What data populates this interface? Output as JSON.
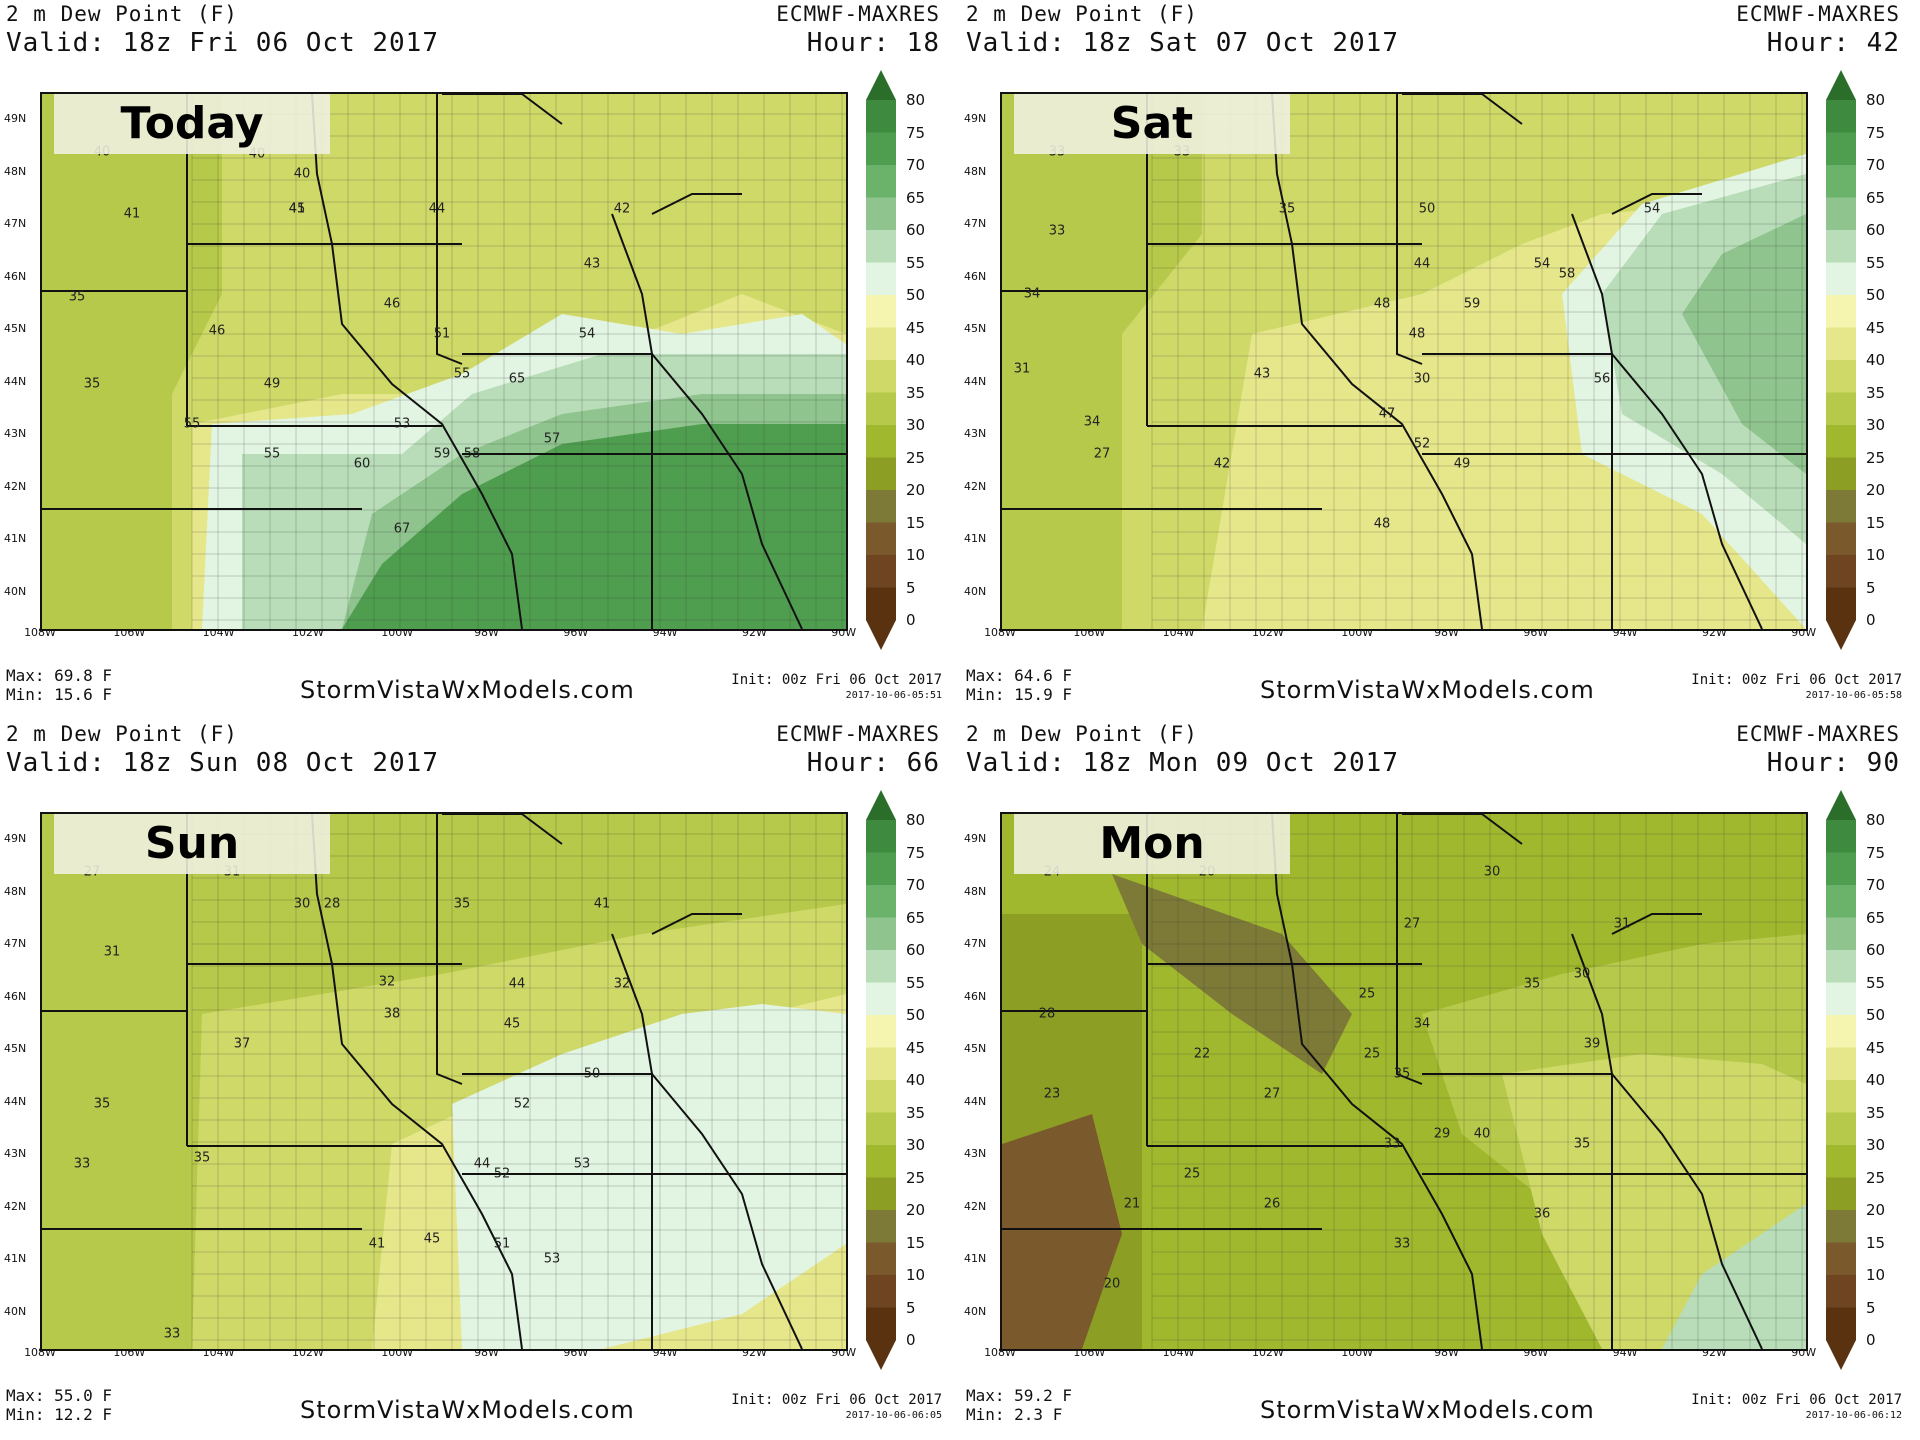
{
  "site": "StormVistaWxModels.com",
  "lat_labels": [
    "49N",
    "48N",
    "47N",
    "46N",
    "45N",
    "44N",
    "43N",
    "42N",
    "41N",
    "40N"
  ],
  "lon_labels": [
    "108W",
    "106W",
    "104W",
    "102W",
    "100W",
    "98W",
    "96W",
    "94W",
    "92W",
    "90W"
  ],
  "colorbar": {
    "levels": [
      "80",
      "75",
      "70",
      "65",
      "60",
      "55",
      "50",
      "45",
      "40",
      "35",
      "30",
      "25",
      "20",
      "15",
      "10",
      "5",
      "0"
    ],
    "colors": [
      "#2a6e2a",
      "#3e8a3e",
      "#4f9e4f",
      "#6bb36b",
      "#8fc48f",
      "#b8ddb8",
      "#e2f5e2",
      "#f5f5b0",
      "#e6e68a",
      "#cfd968",
      "#b7c94a",
      "#a0b82e",
      "#8c9f24",
      "#7d7a38",
      "#7a5a2c",
      "#6e4520",
      "#5a3210"
    ]
  },
  "panels": [
    {
      "title": "2 m Dew Point (F)",
      "valid": "Valid: 18z Fri 06 Oct 2017",
      "model": "ECMWF-MAXRES",
      "hour": "Hour: 18",
      "day_label": "Today",
      "max": "Max: 69.8 F",
      "min": "Min: 15.6 F",
      "init": "Init: 00z Fri 06 Oct 2017",
      "stamp": "2017-10-06-05:51",
      "values": [
        "40",
        "41",
        "40",
        "40",
        "44",
        "42",
        "41",
        "43",
        "45",
        "46",
        "46",
        "35",
        "49",
        "51",
        "54",
        "35",
        "55",
        "55",
        "53",
        "55",
        "60",
        "58",
        "65",
        "57",
        "59",
        "67"
      ]
    },
    {
      "title": "2 m Dew Point (F)",
      "valid": "Valid: 18z Sat 07 Oct 2017",
      "model": "ECMWF-MAXRES",
      "hour": "Hour: 42",
      "day_label": "Sat",
      "max": "Max: 64.6 F",
      "min": "Min: 15.9 F",
      "init": "Init: 00z Fri 06 Oct 2017",
      "stamp": "2017-10-06-05:58",
      "values": [
        "33",
        "33",
        "35",
        "50",
        "54",
        "33",
        "44",
        "54",
        "58",
        "34",
        "48",
        "59",
        "31",
        "43",
        "48",
        "30",
        "47",
        "56",
        "34",
        "42",
        "49",
        "52",
        "27",
        "48"
      ]
    },
    {
      "title": "2 m Dew Point (F)",
      "valid": "Valid: 18z Sun 08 Oct 2017",
      "model": "ECMWF-MAXRES",
      "hour": "Hour: 66",
      "day_label": "Sun",
      "max": "Max: 55.0 F",
      "min": "Min: 12.2 F",
      "init": "Init: 00z Fri 06 Oct 2017",
      "stamp": "2017-10-06-06:05",
      "values": [
        "27",
        "31",
        "30",
        "28",
        "35",
        "41",
        "31",
        "32",
        "44",
        "32",
        "37",
        "38",
        "45",
        "50",
        "52",
        "35",
        "33",
        "44",
        "53",
        "52",
        "35",
        "41",
        "45",
        "51",
        "53",
        "33"
      ]
    },
    {
      "title": "2 m Dew Point (F)",
      "valid": "Valid: 18z Mon 09 Oct 2017",
      "model": "ECMWF-MAXRES",
      "hour": "Hour: 90",
      "day_label": "Mon",
      "max": "Max: 59.2 F",
      "min": "Min: 2.3 F",
      "init": "Init: 00z Fri 06 Oct 2017",
      "stamp": "2017-10-06-06:12",
      "values": [
        "24",
        "20",
        "30",
        "27",
        "31",
        "30",
        "25",
        "35",
        "28",
        "22",
        "25",
        "34",
        "39",
        "23",
        "27",
        "35",
        "29",
        "33",
        "35",
        "25",
        "26",
        "40",
        "33",
        "36",
        "21",
        "20"
      ]
    }
  ]
}
